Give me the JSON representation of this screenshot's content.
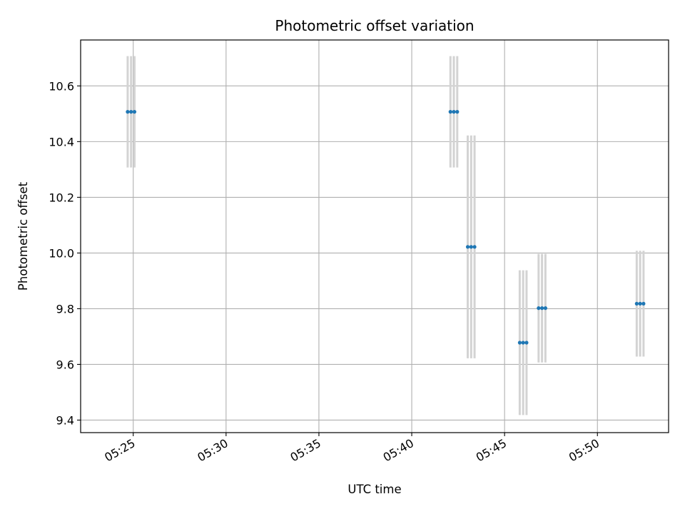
{
  "chart_data": {
    "type": "scatter",
    "title": "Photometric offset variation",
    "xlabel": "UTC time",
    "ylabel": "Photometric offset",
    "x_axis": "time",
    "xlim": [
      "05:22:10",
      "05:53:50"
    ],
    "ylim": [
      9.355,
      10.765
    ],
    "xticks": [
      "05:25",
      "05:30",
      "05:35",
      "05:40",
      "05:45",
      "05:50"
    ],
    "yticks": [
      9.4,
      9.6,
      9.8,
      10.0,
      10.2,
      10.4,
      10.6
    ],
    "grid": true,
    "marker_color": "#1f77b4",
    "errorbar_color": "#d3d3d3",
    "points": [
      {
        "x": "05:24:42",
        "y": 10.507,
        "yerr": 0.2
      },
      {
        "x": "05:24:53",
        "y": 10.507,
        "yerr": 0.2
      },
      {
        "x": "05:25:04",
        "y": 10.507,
        "yerr": 0.2
      },
      {
        "x": "05:42:05",
        "y": 10.507,
        "yerr": 0.2
      },
      {
        "x": "05:42:16",
        "y": 10.507,
        "yerr": 0.2
      },
      {
        "x": "05:42:27",
        "y": 10.507,
        "yerr": 0.2
      },
      {
        "x": "05:43:01",
        "y": 10.022,
        "yerr": 0.4
      },
      {
        "x": "05:43:12",
        "y": 10.022,
        "yerr": 0.4
      },
      {
        "x": "05:43:23",
        "y": 10.022,
        "yerr": 0.4
      },
      {
        "x": "05:45:49",
        "y": 9.678,
        "yerr": 0.26
      },
      {
        "x": "05:46:00",
        "y": 9.678,
        "yerr": 0.26
      },
      {
        "x": "05:46:11",
        "y": 9.678,
        "yerr": 0.26
      },
      {
        "x": "05:46:50",
        "y": 9.802,
        "yerr": 0.195
      },
      {
        "x": "05:47:01",
        "y": 9.802,
        "yerr": 0.195
      },
      {
        "x": "05:47:12",
        "y": 9.802,
        "yerr": 0.195
      },
      {
        "x": "05:52:07",
        "y": 9.818,
        "yerr": 0.19
      },
      {
        "x": "05:52:18",
        "y": 9.818,
        "yerr": 0.19
      },
      {
        "x": "05:52:29",
        "y": 9.818,
        "yerr": 0.19
      }
    ]
  }
}
